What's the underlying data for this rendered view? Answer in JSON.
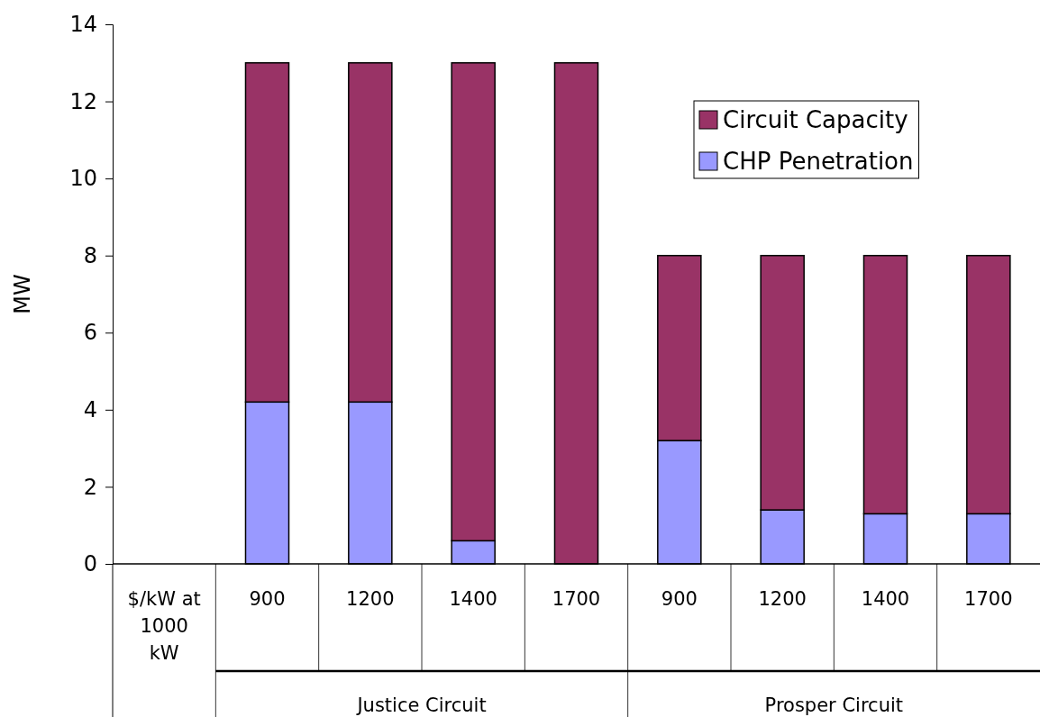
{
  "chart_data": {
    "type": "bar",
    "stacked": true,
    "ylabel": "MW",
    "ylim": [
      0,
      14
    ],
    "yticks": [
      0,
      2,
      4,
      6,
      8,
      10,
      12,
      14
    ],
    "grid": false,
    "legend": "top right",
    "categories": [
      "$/kW at 1000 kW",
      "900",
      "1200",
      "1400",
      "1700",
      "900",
      "1200",
      "1400",
      "1700"
    ],
    "series": [
      {
        "name": "CHP Penetration",
        "color": "#9999ff",
        "values": [
          null,
          4.2,
          4.2,
          0.6,
          0,
          3.2,
          1.4,
          1.3,
          1.3
        ]
      },
      {
        "name": "Circuit Capacity",
        "color": "#993366",
        "values": [
          null,
          8.8,
          8.8,
          12.4,
          13,
          4.8,
          6.6,
          6.7,
          6.7
        ]
      }
    ],
    "annotations": [
      "Justice Circuit",
      "Prosper Circuit"
    ]
  }
}
